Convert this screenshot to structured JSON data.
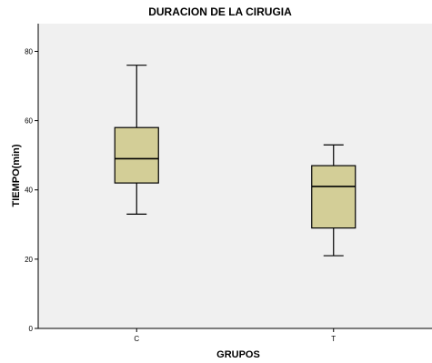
{
  "chart_data": {
    "type": "boxplot",
    "title": "DURACION DE LA CIRUGIA",
    "xlabel": "GRUPOS",
    "ylabel": "TIEMPO(min)",
    "ylim": [
      0,
      88
    ],
    "y_ticks": [
      "0",
      "20",
      "40",
      "60",
      "80"
    ],
    "grid": false,
    "categories": [
      "C",
      "T"
    ],
    "boxes": [
      {
        "category": "C",
        "min": 33,
        "q1": 42,
        "median": 49,
        "q3": 58,
        "max": 76
      },
      {
        "category": "T",
        "min": 21,
        "q1": 29,
        "median": 41,
        "q3": 47,
        "max": 53
      }
    ],
    "colors": {
      "plot_background": "#f0f0f0",
      "box_fill": "#d3ce97",
      "stroke": "#000000"
    }
  }
}
